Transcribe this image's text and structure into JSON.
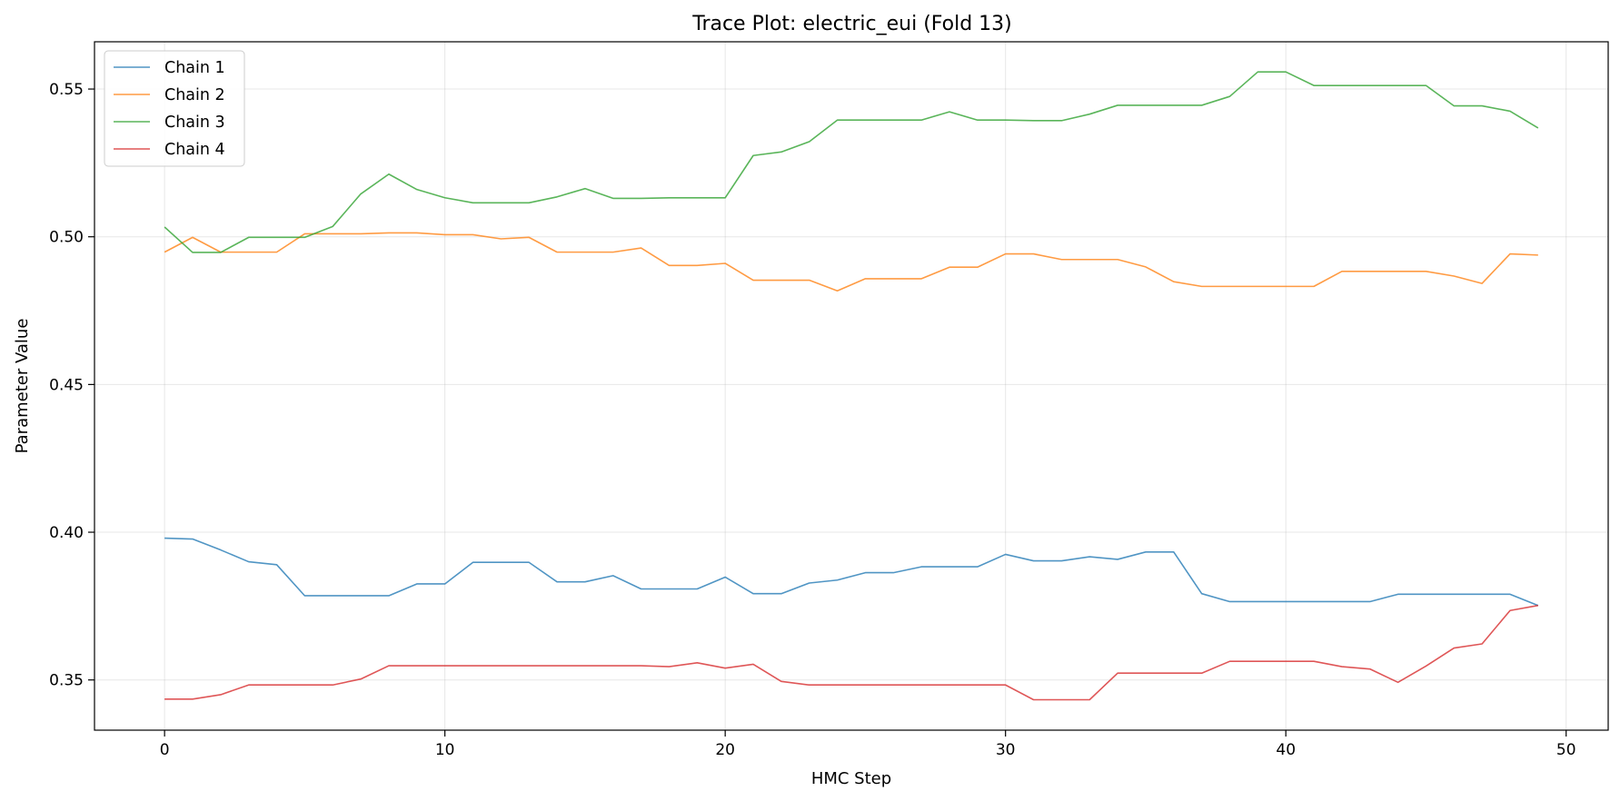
{
  "chart_data": {
    "type": "line",
    "title": "Trace Plot: electric_eui (Fold 13)",
    "xlabel": "HMC Step",
    "ylabel": "Parameter Value",
    "xlim": [
      -2.5,
      51.5
    ],
    "ylim": [
      0.333,
      0.566
    ],
    "xticks": [
      0,
      10,
      20,
      30,
      40,
      50
    ],
    "yticks": [
      0.35,
      0.4,
      0.45,
      0.5,
      0.55
    ],
    "ytick_labels": [
      "0.35",
      "0.40",
      "0.45",
      "0.50",
      "0.55"
    ],
    "grid": true,
    "legend_position": "top-left",
    "x": [
      0,
      1,
      2,
      3,
      4,
      5,
      6,
      7,
      8,
      9,
      10,
      11,
      12,
      13,
      14,
      15,
      16,
      17,
      18,
      19,
      20,
      21,
      22,
      23,
      24,
      25,
      26,
      27,
      28,
      29,
      30,
      31,
      32,
      33,
      34,
      35,
      36,
      37,
      38,
      39,
      40,
      41,
      42,
      43,
      44,
      45,
      46,
      47,
      48,
      49
    ],
    "series": [
      {
        "name": "Chain 1",
        "color": "#1f77b4",
        "values": [
          0.398,
          0.3977,
          0.394,
          0.39,
          0.389,
          0.3785,
          0.3785,
          0.3785,
          0.3785,
          0.3825,
          0.3825,
          0.3898,
          0.3898,
          0.3898,
          0.3832,
          0.3832,
          0.3853,
          0.3808,
          0.3808,
          0.3808,
          0.3848,
          0.3792,
          0.3792,
          0.3828,
          0.3838,
          0.3863,
          0.3863,
          0.3883,
          0.3883,
          0.3883,
          0.3925,
          0.3903,
          0.3903,
          0.3917,
          0.3908,
          0.3933,
          0.3933,
          0.3792,
          0.3765,
          0.3765,
          0.3765,
          0.3765,
          0.3765,
          0.3765,
          0.379,
          0.379,
          0.379,
          0.379,
          0.379,
          0.3752
        ]
      },
      {
        "name": "Chain 2",
        "color": "#ff7f0e",
        "values": [
          0.4948,
          0.4998,
          0.4948,
          0.4948,
          0.4948,
          0.501,
          0.501,
          0.501,
          0.5013,
          0.5013,
          0.5007,
          0.5007,
          0.4993,
          0.4998,
          0.4948,
          0.4948,
          0.4948,
          0.4962,
          0.4903,
          0.4903,
          0.491,
          0.4853,
          0.4853,
          0.4853,
          0.4817,
          0.4858,
          0.4858,
          0.4858,
          0.4897,
          0.4897,
          0.4942,
          0.4942,
          0.4923,
          0.4923,
          0.4923,
          0.4898,
          0.4848,
          0.4832,
          0.4832,
          0.4832,
          0.4832,
          0.4832,
          0.4883,
          0.4883,
          0.4883,
          0.4883,
          0.4867,
          0.4842,
          0.4942,
          0.4938
        ]
      },
      {
        "name": "Chain 3",
        "color": "#2ca02c",
        "values": [
          0.5033,
          0.4947,
          0.4947,
          0.4998,
          0.4998,
          0.4998,
          0.5035,
          0.5145,
          0.5212,
          0.516,
          0.5132,
          0.5115,
          0.5115,
          0.5115,
          0.5135,
          0.5163,
          0.513,
          0.513,
          0.5132,
          0.5132,
          0.5132,
          0.5275,
          0.5287,
          0.5322,
          0.5395,
          0.5395,
          0.5395,
          0.5395,
          0.5423,
          0.5395,
          0.5395,
          0.5393,
          0.5393,
          0.5415,
          0.5445,
          0.5445,
          0.5445,
          0.5445,
          0.5475,
          0.5558,
          0.5558,
          0.5512,
          0.5512,
          0.5512,
          0.5512,
          0.5512,
          0.5443,
          0.5443,
          0.5425,
          0.5368
        ]
      },
      {
        "name": "Chain 4",
        "color": "#d62728",
        "values": [
          0.3435,
          0.3435,
          0.345,
          0.3483,
          0.3483,
          0.3483,
          0.3483,
          0.3503,
          0.3548,
          0.3548,
          0.3548,
          0.3548,
          0.3548,
          0.3548,
          0.3548,
          0.3548,
          0.3548,
          0.3548,
          0.3545,
          0.3558,
          0.354,
          0.3553,
          0.3495,
          0.3483,
          0.3483,
          0.3483,
          0.3483,
          0.3483,
          0.3483,
          0.3483,
          0.3483,
          0.3433,
          0.3433,
          0.3433,
          0.3523,
          0.3523,
          0.3523,
          0.3523,
          0.3563,
          0.3563,
          0.3563,
          0.3563,
          0.3545,
          0.3537,
          0.3492,
          0.3547,
          0.3608,
          0.3622,
          0.3735,
          0.3752
        ]
      }
    ]
  }
}
